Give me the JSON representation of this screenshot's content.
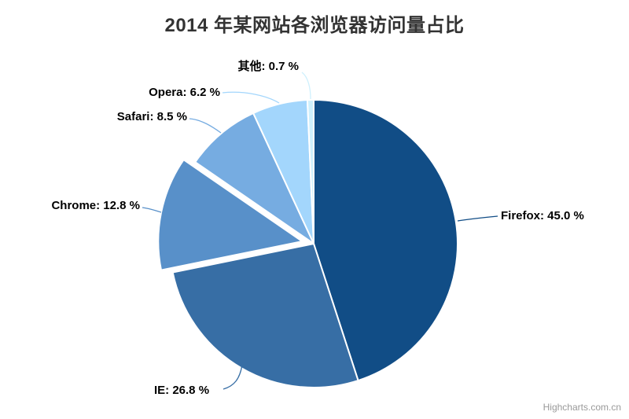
{
  "chart_data": {
    "type": "pie",
    "title": "2014 年某网站各浏览器访问量占比",
    "unit": "%",
    "start_angle_deg": 0,
    "legend": "off",
    "points": [
      {
        "name": "Firefox",
        "value": 45.0,
        "label": "Firefox: 45.0 %",
        "color": "#114D86",
        "sliced": false
      },
      {
        "name": "IE",
        "value": 26.8,
        "label": "IE: 26.8 %",
        "color": "#376EA5",
        "sliced": false
      },
      {
        "name": "Chrome",
        "value": 12.8,
        "label": "Chrome: 12.8 %",
        "color": "#5890C9",
        "sliced": true
      },
      {
        "name": "Safari",
        "value": 8.5,
        "label": "Safari: 8.5 %",
        "color": "#76ACE1",
        "sliced": false
      },
      {
        "name": "Opera",
        "value": 6.2,
        "label": "Opera: 6.2 %",
        "color": "#A3D6FC",
        "sliced": false
      },
      {
        "name": "其他",
        "value": 0.7,
        "label": "其他: 0.7 %",
        "color": "#CEF0FD",
        "sliced": false
      }
    ]
  },
  "credits": {
    "label": "Highcharts.com.cn"
  },
  "colors": {
    "title": "#333333",
    "data_label": "#000000",
    "credits": "#999999",
    "background": "#ffffff",
    "slice_border": "#ffffff"
  }
}
